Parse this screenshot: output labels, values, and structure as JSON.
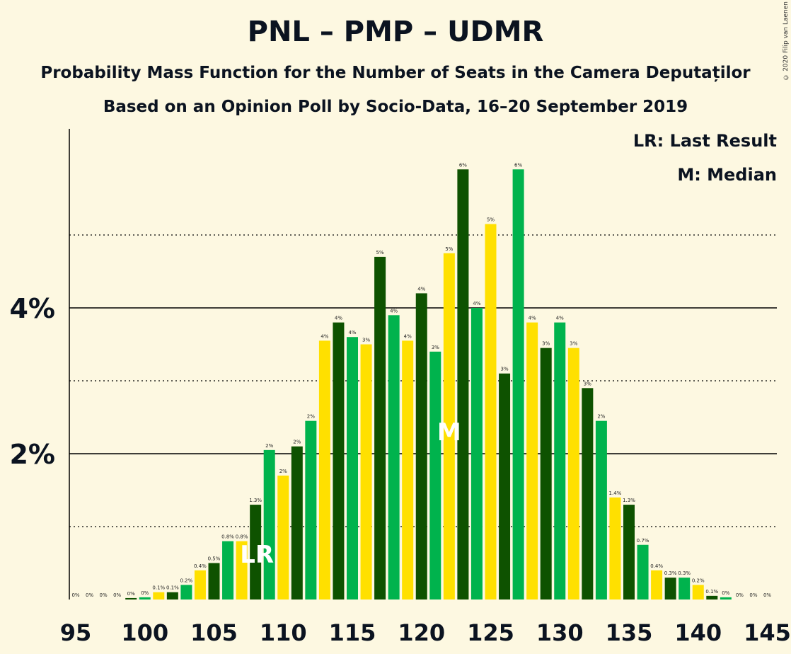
{
  "header": {
    "title": "PNL – PMP – UDMR",
    "subtitle": "Probability Mass Function for the Number of Seats in the Camera Deputaților",
    "subtitle2": "Based on an Opinion Poll by Socio-Data, 16–20 September 2019",
    "copyright": "© 2020 Filip van Laenen"
  },
  "legend": {
    "last_result": "LR: Last Result",
    "median": "M: Median"
  },
  "colors": {
    "background": "#fdf8e1",
    "dark_green": "#0e5200",
    "green": "#00b34d",
    "yellow": "#ffe000"
  },
  "chart_data": {
    "type": "bar",
    "x": [
      95,
      96,
      97,
      98,
      99,
      100,
      101,
      102,
      103,
      104,
      105,
      106,
      107,
      108,
      109,
      110,
      111,
      112,
      113,
      114,
      115,
      116,
      117,
      118,
      119,
      120,
      121,
      122,
      123,
      124,
      125,
      126,
      127,
      128,
      129,
      130,
      131,
      132,
      133,
      134,
      135,
      136,
      137,
      138,
      139,
      140,
      141,
      142,
      143,
      144,
      145
    ],
    "values": [
      0,
      0,
      0,
      0,
      0.02,
      0.03,
      0.1,
      0.1,
      0.2,
      0.4,
      0.5,
      0.8,
      0.8,
      1.3,
      2.05,
      1.7,
      2.1,
      2.45,
      3.55,
      3.8,
      3.6,
      3.5,
      4.7,
      3.9,
      3.55,
      4.2,
      3.4,
      4.75,
      5.9,
      4.0,
      5.15,
      3.1,
      5.9,
      3.8,
      3.45,
      3.8,
      3.45,
      2.9,
      2.45,
      1.4,
      1.3,
      0.75,
      0.4,
      0.3,
      0.3,
      0.2,
      0.05,
      0.03,
      0,
      0,
      0
    ],
    "data_labels": [
      "0%",
      "0%",
      "0%",
      "0%",
      "0%",
      "0%",
      "0.1%",
      "0.1%",
      "0.2%",
      "0.4%",
      "0.5%",
      "0.8%",
      "0.8%",
      "1.3%",
      "2%",
      "2%",
      "2%",
      "2%",
      "4%",
      "4%",
      "4%",
      "3%",
      "5%",
      "4%",
      "4%",
      "4%",
      "3%",
      "5%",
      "6%",
      "4%",
      "5%",
      "3%",
      "6%",
      "4%",
      "3%",
      "4%",
      "3%",
      "3%",
      "2%",
      "1.4%",
      "1.3%",
      "0.7%",
      "0.4%",
      "0.3%",
      "0.3%",
      "0.2%",
      "0.1%",
      "0%",
      "0%",
      "0%",
      "0%"
    ],
    "x_ticks": [
      "95",
      "100",
      "105",
      "110",
      "115",
      "120",
      "125",
      "130",
      "135",
      "140",
      "145"
    ],
    "y_ticks": [
      "2%",
      "4%"
    ],
    "ylim": [
      0,
      6.3
    ],
    "last_result_seat": 108,
    "last_result_marker": "LR",
    "median_seat": 122,
    "median_marker": "M",
    "grid": "major solid at 2% and 4%, dotted at 1%, 3%, 5%",
    "legend_position": "top-right"
  }
}
